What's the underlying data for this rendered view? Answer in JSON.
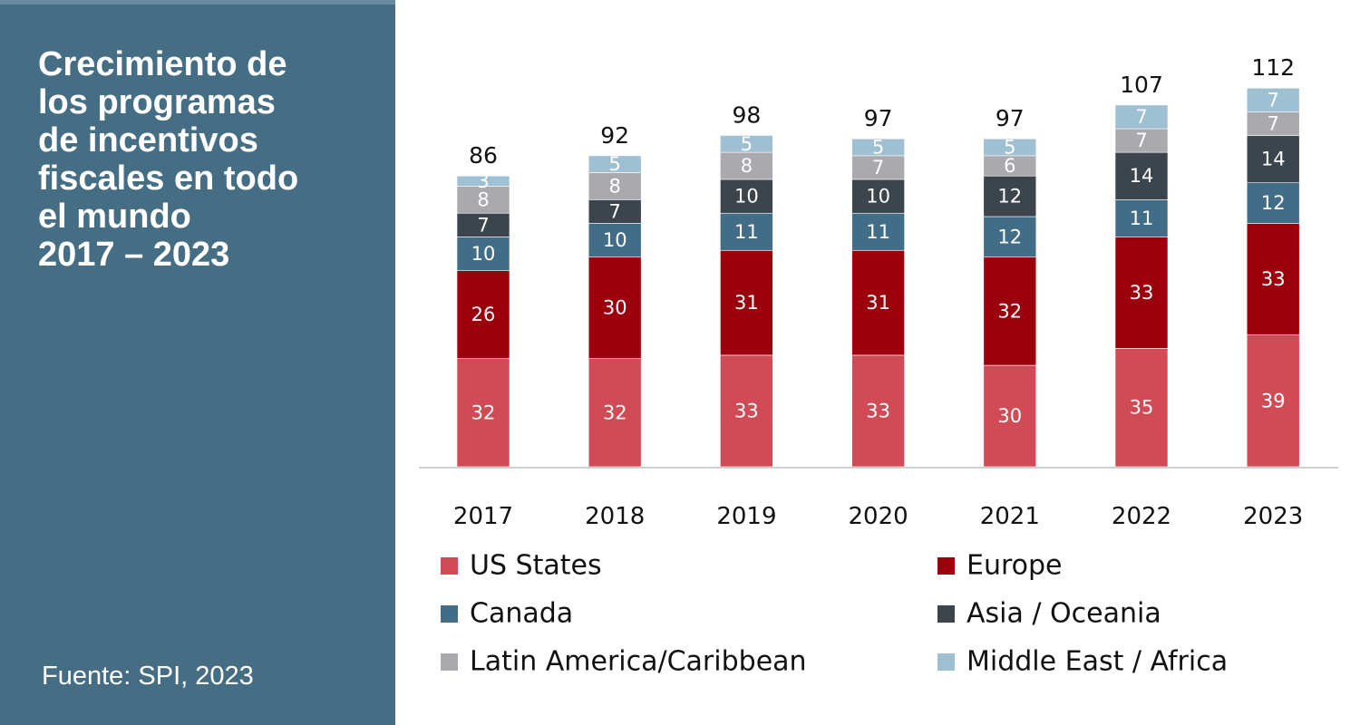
{
  "panel": {
    "title": "Crecimiento de\nlos programas\nde incentivos\nfiscales en todo\nel mundo\n2017 – 2023",
    "source": "Fuente: SPI, 2023"
  },
  "chart_data": {
    "type": "bar",
    "stacked": true,
    "title": "Crecimiento de los programas de incentivos fiscales en todo el mundo 2017 – 2023",
    "xlabel": "",
    "ylabel": "",
    "categories": [
      "2017",
      "2018",
      "2019",
      "2020",
      "2021",
      "2022",
      "2023"
    ],
    "totals": [
      86,
      92,
      98,
      97,
      97,
      107,
      112
    ],
    "series": [
      {
        "name": "US States",
        "color": "#d04b55",
        "values": [
          32,
          32,
          33,
          33,
          30,
          35,
          39
        ]
      },
      {
        "name": "Europe",
        "color": "#9b000c",
        "values": [
          26,
          30,
          31,
          31,
          32,
          33,
          33
        ]
      },
      {
        "name": "Canada",
        "color": "#426d86",
        "values": [
          10,
          10,
          11,
          11,
          12,
          11,
          12
        ]
      },
      {
        "name": "Asia / Oceania",
        "color": "#3c444c",
        "values": [
          7,
          7,
          10,
          10,
          12,
          14,
          14
        ]
      },
      {
        "name": "Latin America/Caribbean",
        "color": "#a9a9ae",
        "values": [
          8,
          8,
          8,
          7,
          6,
          7,
          7
        ]
      },
      {
        "name": "Middle East / Africa",
        "color": "#9fbfd3",
        "values": [
          3,
          5,
          5,
          5,
          5,
          7,
          7
        ]
      }
    ],
    "ylim": [
      0,
      112
    ],
    "grid": false,
    "legend_position": "bottom",
    "source": "Fuente: SPI, 2023"
  }
}
